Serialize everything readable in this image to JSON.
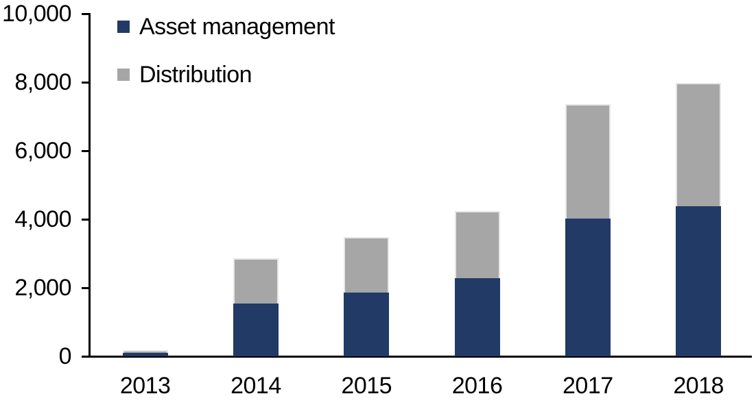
{
  "chart_data": {
    "type": "bar",
    "stacked": true,
    "categories": [
      "2013",
      "2014",
      "2015",
      "2016",
      "2017",
      "2018"
    ],
    "series": [
      {
        "name": "Asset management",
        "color": "#213A66",
        "values": [
          110,
          1540,
          1870,
          2290,
          4020,
          4390
        ]
      },
      {
        "name": "Distribution",
        "color": "#A6A6A6",
        "values": [
          80,
          1320,
          1620,
          1950,
          3340,
          3590
        ]
      }
    ],
    "totals": [
      190,
      2860,
      3490,
      4240,
      7360,
      7980
    ],
    "ylim": [
      0,
      10000
    ],
    "yticks": [
      0,
      2000,
      4000,
      6000,
      8000,
      10000
    ],
    "ytick_labels": [
      "0",
      "2,000",
      "4,000",
      "6,000",
      "8,000",
      "10,000"
    ],
    "xlabel": "",
    "ylabel": "",
    "grid": false,
    "legend_position": "top-left-inside"
  },
  "colors": {
    "axis": "#000000",
    "text": "#000000",
    "background": "#FFFFFF",
    "bar_border": "#E6E6E6"
  }
}
